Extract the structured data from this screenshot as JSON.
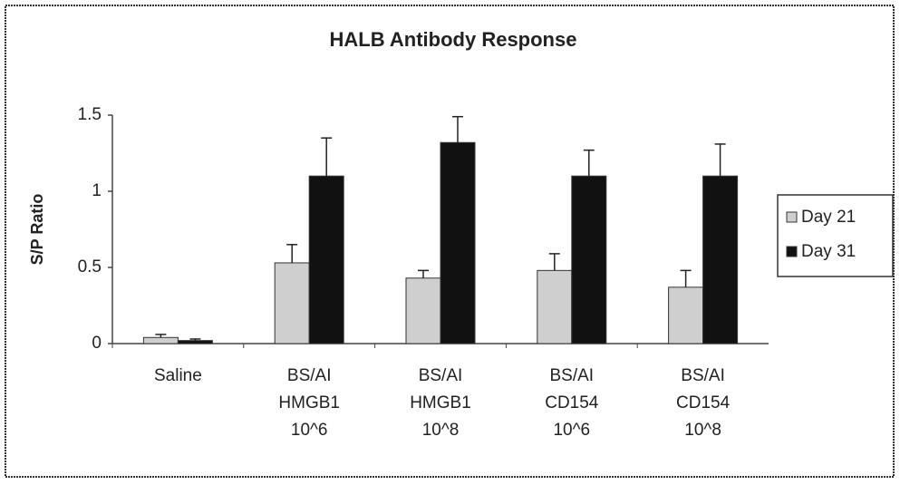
{
  "chart_data": {
    "type": "bar",
    "title": "HALB Antibody Response",
    "y_label": "S/P Ratio",
    "categories": [
      [
        "Saline"
      ],
      [
        "BS/AI",
        "HMGB1",
        "10^6"
      ],
      [
        "BS/AI",
        "HMGB1",
        "10^8"
      ],
      [
        "BS/AI",
        "CD154",
        "10^6"
      ],
      [
        "BS/AI",
        "CD154",
        "10^8"
      ]
    ],
    "series": [
      {
        "name": "Day 21",
        "color": "#cfcfcf",
        "values": [
          0.04,
          0.53,
          0.43,
          0.48,
          0.37
        ],
        "errors": [
          0.02,
          0.12,
          0.05,
          0.11,
          0.11
        ]
      },
      {
        "name": "Day 31",
        "color": "#111111",
        "values": [
          0.02,
          1.1,
          1.32,
          1.1,
          1.1
        ],
        "errors": [
          0.01,
          0.25,
          0.17,
          0.17,
          0.21
        ]
      }
    ],
    "ylim": [
      0,
      1.5
    ],
    "yticks": [
      0,
      0.5,
      1,
      1.5
    ],
    "grid": false,
    "legend": "right"
  }
}
